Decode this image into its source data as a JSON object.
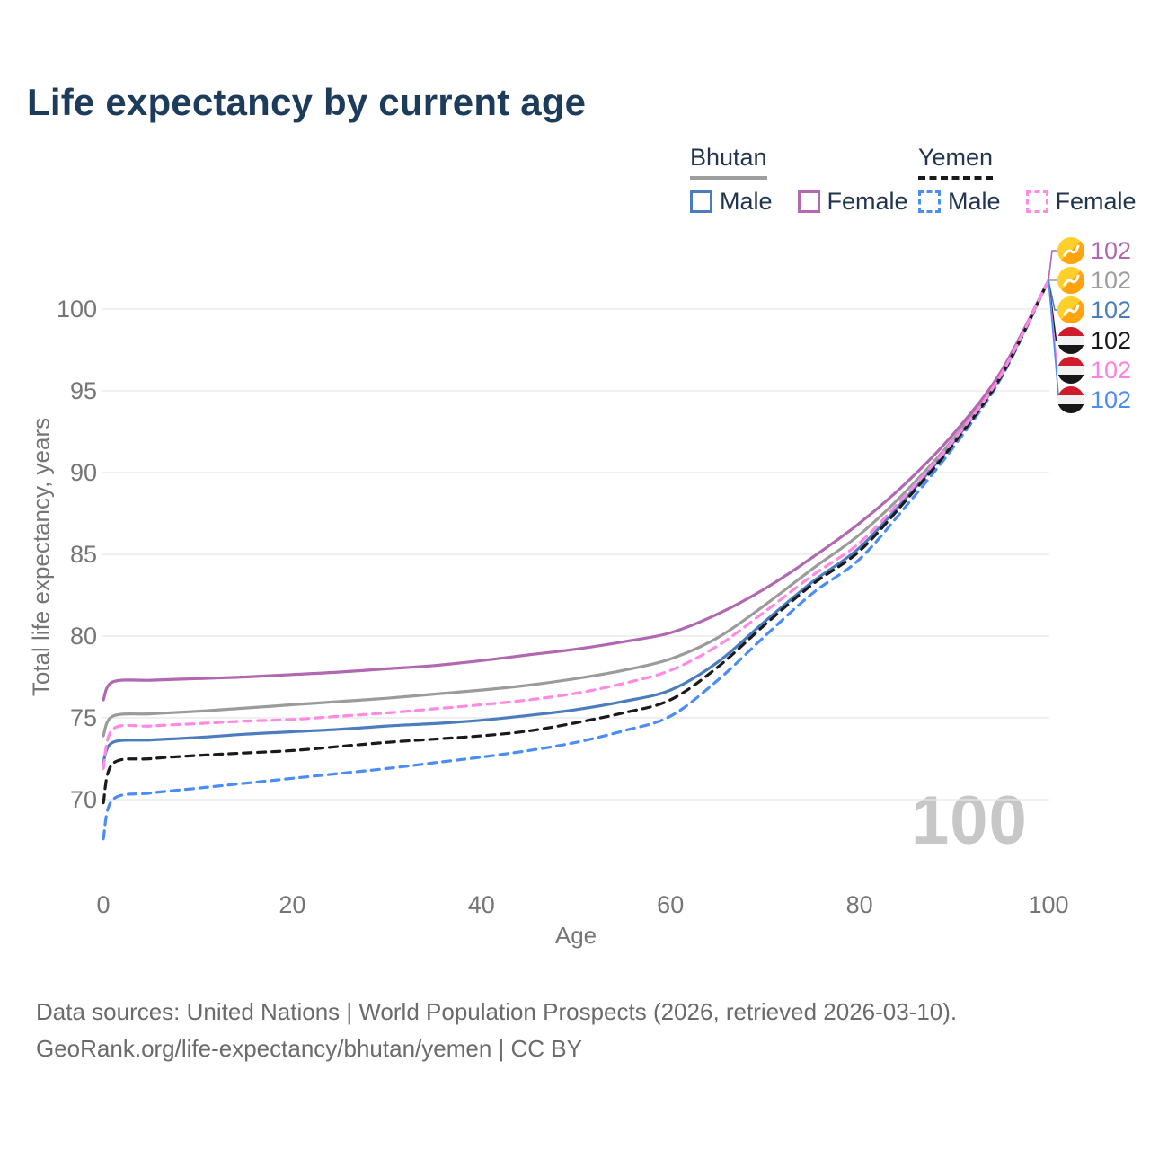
{
  "title": "Life expectancy by current age",
  "watermark": "100",
  "legend": {
    "groups": [
      {
        "id": "bhutan",
        "label": "Bhutan",
        "line_style": "solid",
        "underline_color": "#9e9e9e",
        "items": [
          {
            "label": "Male",
            "color": "#4b7dbe",
            "dashed": false
          },
          {
            "label": "Female",
            "color": "#b269b2",
            "dashed": false
          }
        ]
      },
      {
        "id": "yemen",
        "label": "Yemen",
        "line_style": "dashed",
        "underline_color": "#1a1a1a",
        "items": [
          {
            "label": "Male",
            "color": "#4c8df5",
            "dashed": true
          },
          {
            "label": "Female",
            "color": "#ff8ae3",
            "dashed": true
          }
        ]
      }
    ]
  },
  "footer": {
    "line1": "Data sources: United Nations | World Population Prospects (2026, retrieved 2026-03-10).",
    "line2": "GeoRank.org/life-expectancy/bhutan/yemen | CC BY"
  },
  "chart_data": {
    "type": "line",
    "title": "Life expectancy by current age",
    "xlabel": "Age",
    "ylabel": "Total life expectancy, years",
    "x_ticks": [
      0,
      20,
      40,
      60,
      80,
      100
    ],
    "y_ticks": [
      70,
      75,
      80,
      85,
      90,
      95,
      100
    ],
    "xlim": [
      0,
      100
    ],
    "ylim": [
      66,
      103
    ],
    "grid": "horizontal",
    "legend_position": "top-right",
    "ages": [
      0,
      1,
      5,
      10,
      15,
      20,
      25,
      30,
      35,
      40,
      45,
      50,
      55,
      60,
      65,
      70,
      75,
      80,
      85,
      90,
      95,
      100
    ],
    "series": [
      {
        "name": "Bhutan Male",
        "color": "#4b7dbe",
        "dash": false,
        "end_label": "102",
        "values": [
          72.3,
          73.5,
          73.65,
          73.8,
          74.0,
          74.15,
          74.3,
          74.5,
          74.65,
          74.85,
          75.15,
          75.5,
          76.0,
          76.7,
          78.4,
          80.9,
          83.3,
          85.4,
          88.5,
          91.9,
          95.95,
          101.75
        ]
      },
      {
        "name": "Bhutan All",
        "color": "#9b9b9b",
        "dash": false,
        "end_label": "102",
        "values": [
          73.9,
          75.1,
          75.25,
          75.4,
          75.6,
          75.8,
          76.0,
          76.2,
          76.45,
          76.7,
          77.0,
          77.4,
          77.9,
          78.6,
          79.9,
          81.9,
          84.1,
          86.2,
          88.9,
          92.1,
          96.05,
          101.75
        ]
      },
      {
        "name": "Bhutan Female",
        "color": "#b168b1",
        "dash": false,
        "end_label": "102",
        "values": [
          76.1,
          77.2,
          77.3,
          77.4,
          77.5,
          77.65,
          77.8,
          78.0,
          78.2,
          78.5,
          78.85,
          79.2,
          79.65,
          80.2,
          81.35,
          82.9,
          84.8,
          86.9,
          89.4,
          92.4,
          96.2,
          101.75
        ]
      },
      {
        "name": "Yemen Male",
        "color": "#4c8df5",
        "dash": true,
        "end_label": "102",
        "values": [
          67.6,
          70.0,
          70.4,
          70.7,
          71.0,
          71.3,
          71.6,
          71.9,
          72.25,
          72.6,
          73.0,
          73.5,
          74.2,
          75.1,
          77.3,
          80.0,
          82.6,
          84.7,
          88.0,
          91.6,
          95.8,
          101.75
        ]
      },
      {
        "name": "Yemen All",
        "color": "#1a1a1a",
        "dash": true,
        "end_label": "102",
        "values": [
          69.8,
          72.2,
          72.5,
          72.7,
          72.85,
          73.0,
          73.25,
          73.5,
          73.7,
          73.9,
          74.2,
          74.7,
          75.3,
          76.1,
          78.1,
          80.7,
          83.15,
          85.2,
          88.35,
          91.8,
          95.9,
          101.75
        ]
      },
      {
        "name": "Yemen Female",
        "color": "#ff8ae3",
        "dash": true,
        "end_label": "102",
        "values": [
          71.9,
          74.3,
          74.5,
          74.65,
          74.8,
          74.9,
          75.1,
          75.3,
          75.55,
          75.8,
          76.1,
          76.5,
          77.1,
          77.9,
          79.4,
          81.5,
          83.7,
          85.7,
          88.7,
          92.0,
          96.0,
          101.75
        ]
      }
    ],
    "end_labels": [
      {
        "text": "102",
        "color": "#b168b1",
        "flag": "bhutan",
        "series": "Bhutan Female"
      },
      {
        "text": "102",
        "color": "#9e9e9e",
        "flag": "bhutan",
        "series": "Bhutan All"
      },
      {
        "text": "102",
        "color": "#4b7dbe",
        "flag": "bhutan",
        "series": "Bhutan Male"
      },
      {
        "text": "102",
        "color": "#1a1a1a",
        "flag": "yemen",
        "series": "Yemen All"
      },
      {
        "text": "102",
        "color": "#ff80df",
        "flag": "yemen",
        "series": "Yemen Female"
      },
      {
        "text": "102",
        "color": "#4c8df5",
        "flag": "yemen",
        "series": "Yemen Male"
      }
    ]
  }
}
